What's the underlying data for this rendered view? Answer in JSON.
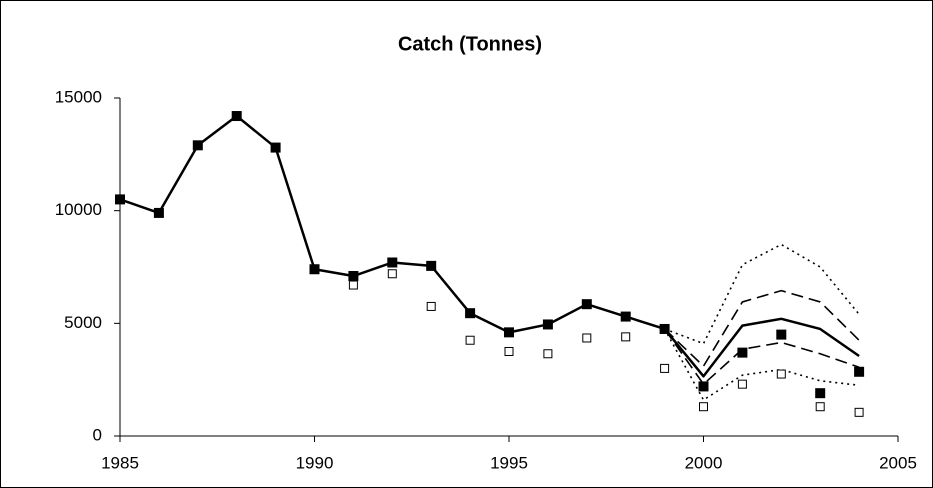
{
  "chart_data": {
    "type": "line",
    "title": "Catch (Tonnes)",
    "x": [
      1985,
      1986,
      1987,
      1988,
      1989,
      1990,
      1991,
      1992,
      1993,
      1994,
      1995,
      1996,
      1997,
      1998,
      1999,
      2000,
      2001,
      2002,
      2003,
      2004
    ],
    "series": [
      {
        "color": "#000000",
        "line": "dotted",
        "marker": "none",
        "values": [
          null,
          null,
          null,
          null,
          null,
          null,
          null,
          null,
          null,
          null,
          null,
          null,
          null,
          null,
          4750,
          4100,
          7600,
          8500,
          7500,
          5400
        ]
      },
      {
        "color": "#000000",
        "line": "dotted",
        "marker": "none",
        "values": [
          null,
          null,
          null,
          null,
          null,
          null,
          null,
          null,
          null,
          null,
          null,
          null,
          null,
          null,
          4750,
          1600,
          2700,
          2950,
          2450,
          2250
        ]
      },
      {
        "color": "#000000",
        "line": "dashed",
        "marker": "none",
        "values": [
          null,
          null,
          null,
          null,
          null,
          null,
          null,
          null,
          null,
          null,
          null,
          null,
          null,
          null,
          4750,
          3100,
          5950,
          6450,
          5950,
          4250
        ]
      },
      {
        "color": "#000000",
        "line": "dashed",
        "marker": "none",
        "values": [
          null,
          null,
          null,
          null,
          null,
          null,
          null,
          null,
          null,
          null,
          null,
          null,
          null,
          null,
          4750,
          2300,
          3850,
          4150,
          3650,
          3050
        ]
      },
      {
        "color": "#000000",
        "line": "solid",
        "marker": "none",
        "values": [
          10500,
          9900,
          12900,
          14200,
          12800,
          7400,
          7100,
          7700,
          7550,
          5450,
          4600,
          4950,
          5850,
          5300,
          4750,
          2650,
          4900,
          5200,
          4750,
          3550
        ]
      },
      {
        "color": "#000000",
        "line": "none",
        "marker": "open-square",
        "values": [
          null,
          null,
          null,
          null,
          null,
          null,
          6700,
          7200,
          5750,
          4250,
          3750,
          3650,
          4350,
          4400,
          3000,
          1300,
          2300,
          2750,
          1300,
          1050
        ]
      },
      {
        "color": "#000000",
        "line": "none",
        "marker": "filled-square",
        "values": [
          10500,
          9900,
          12900,
          14200,
          12800,
          7400,
          7100,
          7700,
          7550,
          5450,
          4600,
          4950,
          5850,
          5300,
          4750,
          2200,
          3700,
          4500,
          1900,
          2850
        ]
      }
    ],
    "xlim": [
      1985,
      2005
    ],
    "xticks": [
      1985,
      1990,
      1995,
      2000,
      2005
    ],
    "ylim": [
      0,
      15000
    ],
    "yticks": [
      0,
      5000,
      10000,
      15000
    ]
  }
}
